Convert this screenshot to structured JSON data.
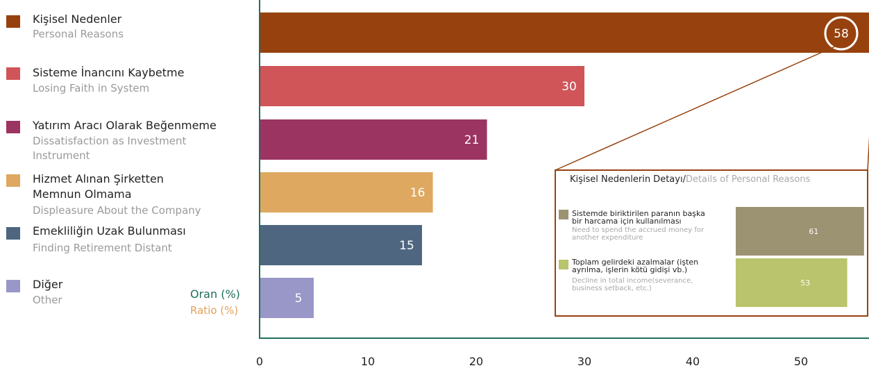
{
  "chart_data": {
    "type": "bar",
    "orientation": "horizontal",
    "categories": [
      {
        "tr": "Kişisel Nedenler",
        "en": "Personal Reasons",
        "color": "#97420e"
      },
      {
        "tr": "Sisteme İnancını Kaybetme",
        "en": "Losing Faith in System",
        "color": "#cf5559"
      },
      {
        "tr": "Yatırım Aracı Olarak Beğenmeme",
        "en": "Dissatisfaction as Investment Instrument",
        "color": "#9c3462"
      },
      {
        "tr": "Hizmet Alınan Şirketten Memnun Olmama",
        "en": "Displeasure About the Company",
        "color": "#dea861"
      },
      {
        "tr": "Emekliliğin Uzak Bulunması",
        "en": "Finding Retirement Distant",
        "color": "#4e6680"
      },
      {
        "tr": "Diğer",
        "en": "Other",
        "color": "#9996c8"
      }
    ],
    "values": [
      58,
      30,
      21,
      16,
      15,
      5
    ],
    "xlabel": {
      "tr": "Oran (%)",
      "en": "Ratio (%)"
    },
    "xlim": [
      0,
      56
    ],
    "xticks": [
      0,
      10,
      20,
      30,
      40,
      50
    ],
    "legend_position": "left",
    "grid": false,
    "axis_color": "#1f6e5a",
    "detail": {
      "title_tr": "Kişisel Nedenlerin Detayı/",
      "title_en": "Details of Personal Reasons",
      "frame_color": "#97420e",
      "items": [
        {
          "tr": "Sistemde biriktirilen paranın başka bir harcama için kullanılması",
          "en": "Need to spend the accrued money for another expenditure",
          "value": 61,
          "color": "#9b9371"
        },
        {
          "tr": "Toplam gelirdeki azalmalar (işten ayrılma, işlerin kötü gidişi vb.)",
          "en": "Decline in total income(severance, business setback, etc.)",
          "value": 53,
          "color": "#b9c46c"
        }
      ]
    }
  }
}
